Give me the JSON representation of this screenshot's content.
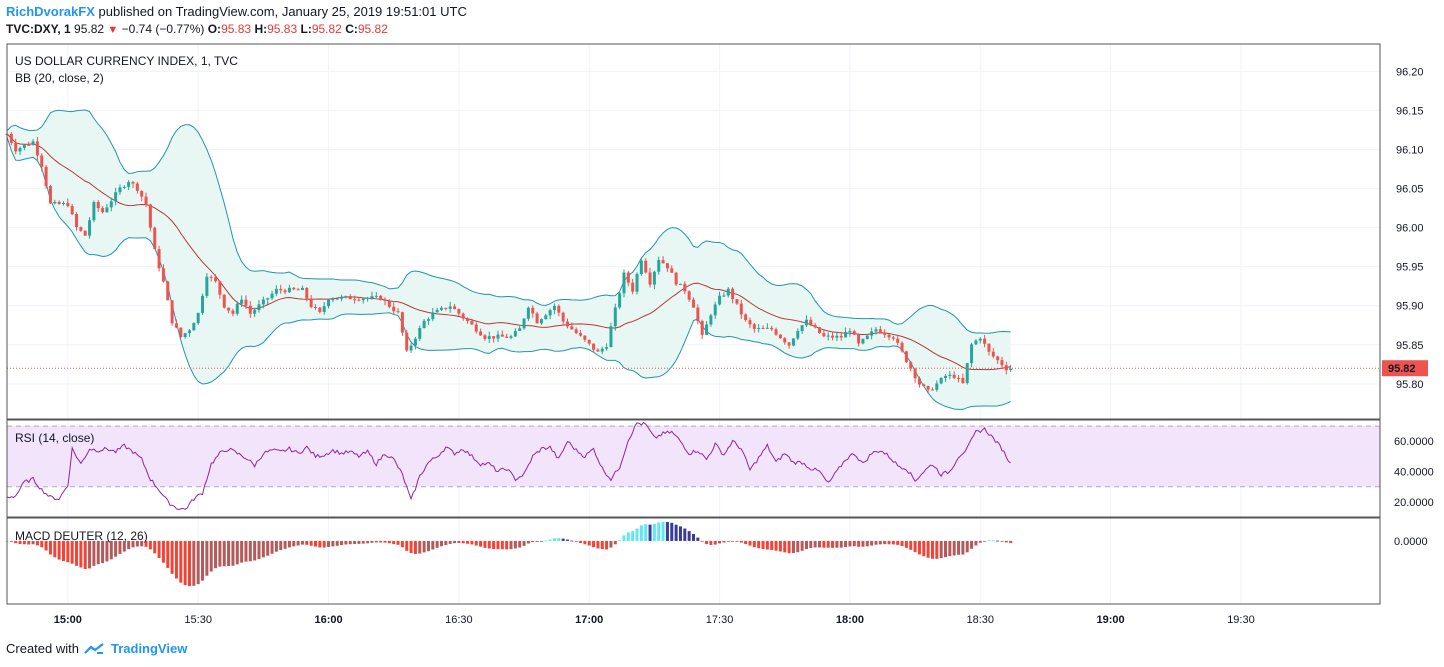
{
  "header": {
    "username": "RichDvorakFX",
    "published_text": "published on TradingView.com, January 25, 2019 19:51:01 UTC",
    "symbol": "TVC:DXY, 1",
    "last": "95.82",
    "change": "−0.74 (−0.77%)",
    "o_label": "O:",
    "o_value": "95.83",
    "h_label": "H:",
    "h_value": "95.83",
    "l_label": "L:",
    "l_value": "95.82",
    "c_label": "C:",
    "c_value": "95.82"
  },
  "footer": {
    "created_with": "Created with",
    "brand": "TradingView"
  },
  "colors": {
    "up": "#26a69a",
    "down": "#ef5350",
    "bb": "#2196a8",
    "bb_fill": "#e8f6f4",
    "basis": "#b23a3a",
    "rsi": "#8e24aa",
    "rsi_band": "#f1e4fb",
    "macd_dark_red": "#b45a5a",
    "macd_red": "#f44336",
    "macd_cyan": "#5de8f2",
    "macd_navy": "#3a3a9a",
    "price_line": "#ef5350",
    "grid": "#f0f3fa",
    "border": "#555555"
  },
  "chart_data": {
    "type": "candlestick",
    "title": "US DOLLAR CURRENCY INDEX, 1, TVC",
    "indicator_bb": "BB (20, close, 2)",
    "indicator_rsi": "RSI (14, close)",
    "indicator_macd": "MACD DEUTER (12, 26)",
    "x_ticks": [
      {
        "label": "15:00",
        "minute": 540,
        "bold": true
      },
      {
        "label": "15:30",
        "minute": 570,
        "bold": false
      },
      {
        "label": "16:00",
        "minute": 600,
        "bold": true
      },
      {
        "label": "16:30",
        "minute": 630,
        "bold": false
      },
      {
        "label": "17:00",
        "minute": 660,
        "bold": true
      },
      {
        "label": "17:30",
        "minute": 690,
        "bold": false
      },
      {
        "label": "18:00",
        "minute": 720,
        "bold": true
      },
      {
        "label": "18:30",
        "minute": 750,
        "bold": false
      },
      {
        "label": "19:00",
        "minute": 780,
        "bold": true
      },
      {
        "label": "19:30",
        "minute": 810,
        "bold": false
      }
    ],
    "x_range_minutes": [
      526,
      842
    ],
    "price_axis": {
      "ticks": [
        "96.20",
        "96.15",
        "96.10",
        "96.05",
        "96.00",
        "95.95",
        "95.90",
        "95.85",
        "95.80"
      ],
      "ylim": [
        95.755,
        96.235
      ],
      "last_price": "95.82"
    },
    "rsi_axis": {
      "ticks": [
        "60.0000",
        "40.0000",
        "20.0000"
      ],
      "ylim": [
        10,
        74
      ],
      "band": [
        30,
        70
      ]
    },
    "macd_axis": {
      "ticks": [
        "0.0000"
      ],
      "ylim": [
        -0.11,
        0.04
      ]
    },
    "price_anchors": [
      [
        527,
        96.12
      ],
      [
        529,
        96.1
      ],
      [
        533,
        96.11
      ],
      [
        535,
        96.08
      ],
      [
        537,
        96.03
      ],
      [
        541,
        96.03
      ],
      [
        543,
        96.0
      ],
      [
        545,
        95.99
      ],
      [
        547,
        96.03
      ],
      [
        549,
        96.02
      ],
      [
        553,
        96.05
      ],
      [
        555,
        96.06
      ],
      [
        557,
        96.05
      ],
      [
        559,
        96.03
      ],
      [
        561,
        95.97
      ],
      [
        563,
        95.93
      ],
      [
        565,
        95.88
      ],
      [
        567,
        95.86
      ],
      [
        569,
        95.87
      ],
      [
        571,
        95.89
      ],
      [
        573,
        95.94
      ],
      [
        575,
        95.93
      ],
      [
        577,
        95.9
      ],
      [
        579,
        95.89
      ],
      [
        581,
        95.91
      ],
      [
        583,
        95.89
      ],
      [
        587,
        95.91
      ],
      [
        589,
        95.92
      ],
      [
        591,
        95.92
      ],
      [
        595,
        95.92
      ],
      [
        597,
        95.9
      ],
      [
        599,
        95.89
      ],
      [
        601,
        95.91
      ],
      [
        605,
        95.91
      ],
      [
        609,
        95.91
      ],
      [
        613,
        95.91
      ],
      [
        617,
        95.89
      ],
      [
        619,
        95.84
      ],
      [
        621,
        95.86
      ],
      [
        623,
        95.88
      ],
      [
        625,
        95.89
      ],
      [
        629,
        95.9
      ],
      [
        633,
        95.88
      ],
      [
        635,
        95.87
      ],
      [
        637,
        95.86
      ],
      [
        641,
        95.86
      ],
      [
        643,
        95.86
      ],
      [
        645,
        95.87
      ],
      [
        647,
        95.9
      ],
      [
        649,
        95.88
      ],
      [
        653,
        95.9
      ],
      [
        655,
        95.88
      ],
      [
        657,
        95.87
      ],
      [
        659,
        95.86
      ],
      [
        661,
        95.85
      ],
      [
        663,
        95.84
      ],
      [
        665,
        95.85
      ],
      [
        669,
        95.94
      ],
      [
        671,
        95.92
      ],
      [
        673,
        95.96
      ],
      [
        675,
        95.93
      ],
      [
        677,
        95.96
      ],
      [
        679,
        95.95
      ],
      [
        681,
        95.93
      ],
      [
        683,
        95.92
      ],
      [
        685,
        95.9
      ],
      [
        687,
        95.86
      ],
      [
        689,
        95.89
      ],
      [
        691,
        95.91
      ],
      [
        693,
        95.92
      ],
      [
        695,
        95.9
      ],
      [
        697,
        95.88
      ],
      [
        699,
        95.87
      ],
      [
        703,
        95.87
      ],
      [
        705,
        95.86
      ],
      [
        707,
        95.85
      ],
      [
        709,
        95.87
      ],
      [
        711,
        95.88
      ],
      [
        713,
        95.87
      ],
      [
        715,
        95.86
      ],
      [
        719,
        95.86
      ],
      [
        721,
        95.87
      ],
      [
        723,
        95.85
      ],
      [
        725,
        95.86
      ],
      [
        727,
        95.87
      ],
      [
        731,
        95.86
      ],
      [
        733,
        95.84
      ],
      [
        735,
        95.82
      ],
      [
        737,
        95.8
      ],
      [
        739,
        95.79
      ],
      [
        741,
        95.8
      ],
      [
        743,
        95.81
      ],
      [
        745,
        95.81
      ],
      [
        747,
        95.8
      ],
      [
        749,
        95.85
      ],
      [
        751,
        95.86
      ],
      [
        753,
        95.84
      ],
      [
        755,
        95.83
      ],
      [
        757,
        95.82
      ]
    ],
    "rsi_anchors": [
      [
        526,
        23
      ],
      [
        528,
        24
      ],
      [
        530,
        33
      ],
      [
        532,
        35
      ],
      [
        534,
        28
      ],
      [
        536,
        23
      ],
      [
        538,
        22
      ],
      [
        540,
        31
      ],
      [
        541,
        55
      ],
      [
        543,
        45
      ],
      [
        545,
        55
      ],
      [
        547,
        54
      ],
      [
        549,
        55
      ],
      [
        551,
        53
      ],
      [
        553,
        57
      ],
      [
        555,
        53
      ],
      [
        557,
        48
      ],
      [
        559,
        35
      ],
      [
        561,
        28
      ],
      [
        563,
        20
      ],
      [
        565,
        16
      ],
      [
        567,
        15
      ],
      [
        569,
        22
      ],
      [
        571,
        26
      ],
      [
        573,
        45
      ],
      [
        575,
        52
      ],
      [
        577,
        55
      ],
      [
        579,
        52
      ],
      [
        581,
        49
      ],
      [
        583,
        44
      ],
      [
        585,
        52
      ],
      [
        587,
        54
      ],
      [
        589,
        53
      ],
      [
        591,
        55
      ],
      [
        593,
        52
      ],
      [
        595,
        56
      ],
      [
        597,
        50
      ],
      [
        599,
        51
      ],
      [
        601,
        54
      ],
      [
        603,
        52
      ],
      [
        605,
        53
      ],
      [
        607,
        50
      ],
      [
        609,
        53
      ],
      [
        611,
        45
      ],
      [
        613,
        52
      ],
      [
        615,
        48
      ],
      [
        617,
        38
      ],
      [
        619,
        21
      ],
      [
        621,
        37
      ],
      [
        623,
        46
      ],
      [
        625,
        50
      ],
      [
        627,
        56
      ],
      [
        629,
        52
      ],
      [
        631,
        55
      ],
      [
        633,
        50
      ],
      [
        635,
        45
      ],
      [
        637,
        45
      ],
      [
        639,
        40
      ],
      [
        641,
        42
      ],
      [
        643,
        35
      ],
      [
        645,
        38
      ],
      [
        647,
        50
      ],
      [
        649,
        55
      ],
      [
        651,
        56
      ],
      [
        653,
        48
      ],
      [
        655,
        60
      ],
      [
        657,
        54
      ],
      [
        659,
        50
      ],
      [
        661,
        55
      ],
      [
        663,
        42
      ],
      [
        665,
        35
      ],
      [
        667,
        43
      ],
      [
        669,
        61
      ],
      [
        671,
        72
      ],
      [
        673,
        71
      ],
      [
        675,
        62
      ],
      [
        677,
        65
      ],
      [
        679,
        66
      ],
      [
        681,
        60
      ],
      [
        683,
        52
      ],
      [
        685,
        54
      ],
      [
        687,
        48
      ],
      [
        689,
        58
      ],
      [
        691,
        51
      ],
      [
        693,
        60
      ],
      [
        695,
        55
      ],
      [
        697,
        41
      ],
      [
        699,
        49
      ],
      [
        701,
        57
      ],
      [
        703,
        46
      ],
      [
        705,
        52
      ],
      [
        707,
        46
      ],
      [
        709,
        46
      ],
      [
        711,
        42
      ],
      [
        713,
        40
      ],
      [
        715,
        32
      ],
      [
        717,
        40
      ],
      [
        719,
        48
      ],
      [
        721,
        52
      ],
      [
        723,
        45
      ],
      [
        725,
        52
      ],
      [
        727,
        54
      ],
      [
        729,
        50
      ],
      [
        731,
        44
      ],
      [
        733,
        42
      ],
      [
        735,
        34
      ],
      [
        737,
        40
      ],
      [
        739,
        45
      ],
      [
        741,
        38
      ],
      [
        743,
        40
      ],
      [
        745,
        50
      ],
      [
        747,
        55
      ],
      [
        749,
        66
      ],
      [
        751,
        68
      ],
      [
        753,
        62
      ],
      [
        755,
        55
      ],
      [
        757,
        45
      ]
    ],
    "bars_sample_minutes": [
      526,
      757
    ]
  }
}
